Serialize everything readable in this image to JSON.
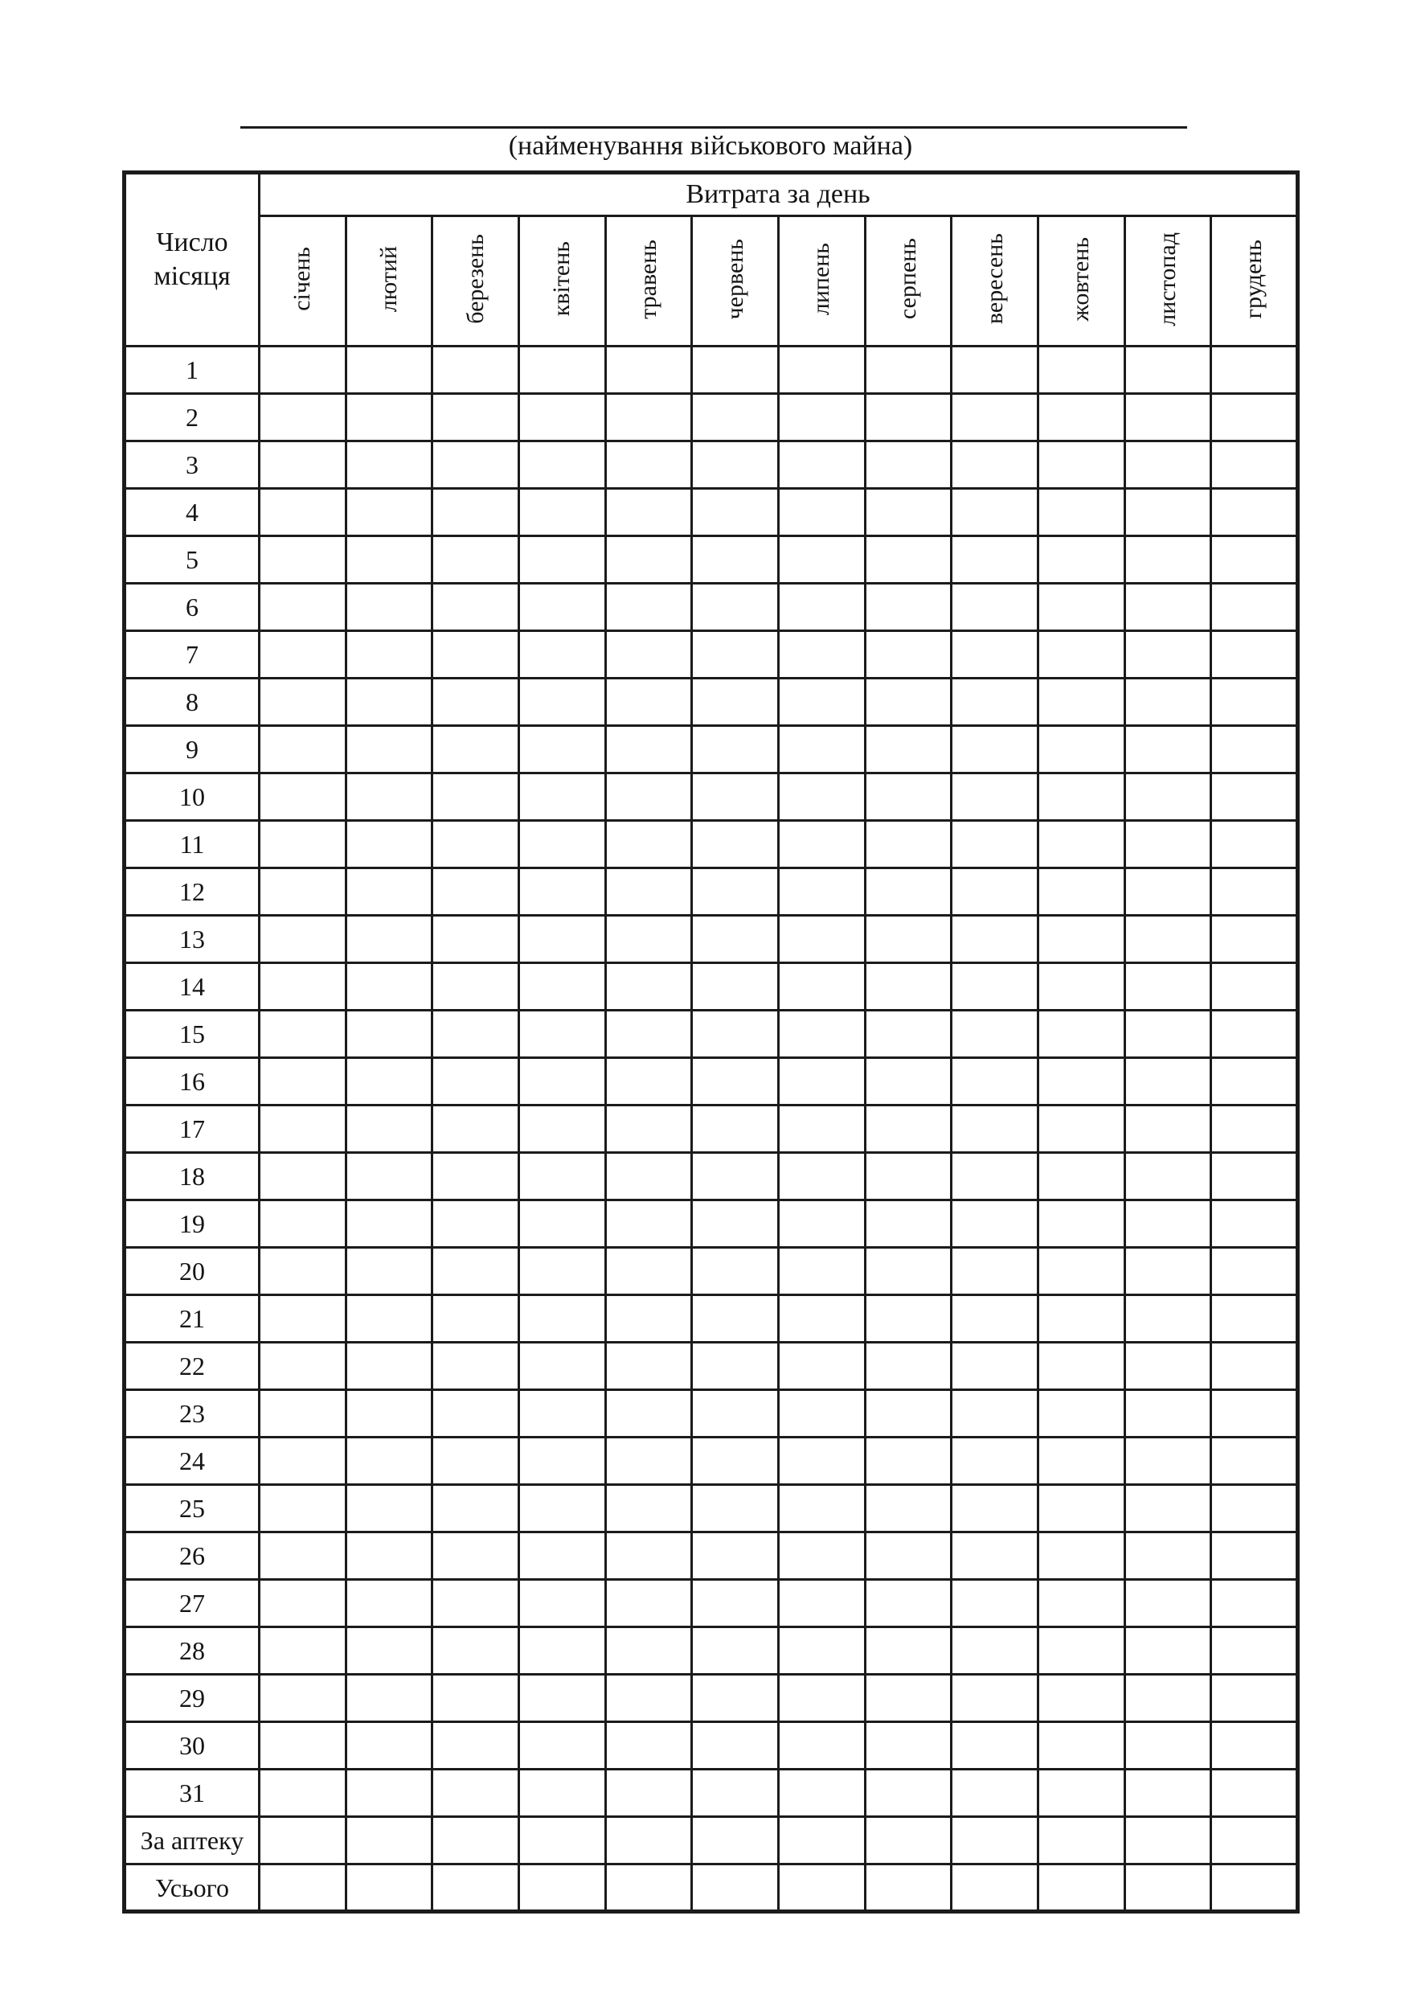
{
  "header": {
    "caption": "(найменування військового майна)"
  },
  "table": {
    "corner_label": "Число місяця",
    "group_label": "Витрата за день",
    "months": [
      "січень",
      "лютий",
      "березень",
      "квітень",
      "травень",
      "червень",
      "липень",
      "серпень",
      "вересень",
      "жовтень",
      "листопад",
      "грудень"
    ],
    "rows": [
      "1",
      "2",
      "3",
      "4",
      "5",
      "6",
      "7",
      "8",
      "9",
      "10",
      "11",
      "12",
      "13",
      "14",
      "15",
      "16",
      "17",
      "18",
      "19",
      "20",
      "21",
      "22",
      "23",
      "24",
      "25",
      "26",
      "27",
      "28",
      "29",
      "30",
      "31",
      "За аптеку",
      "Усього"
    ]
  },
  "colors": {
    "border": "#1b1b1b",
    "text": "#141414",
    "background": "#ffffff"
  }
}
